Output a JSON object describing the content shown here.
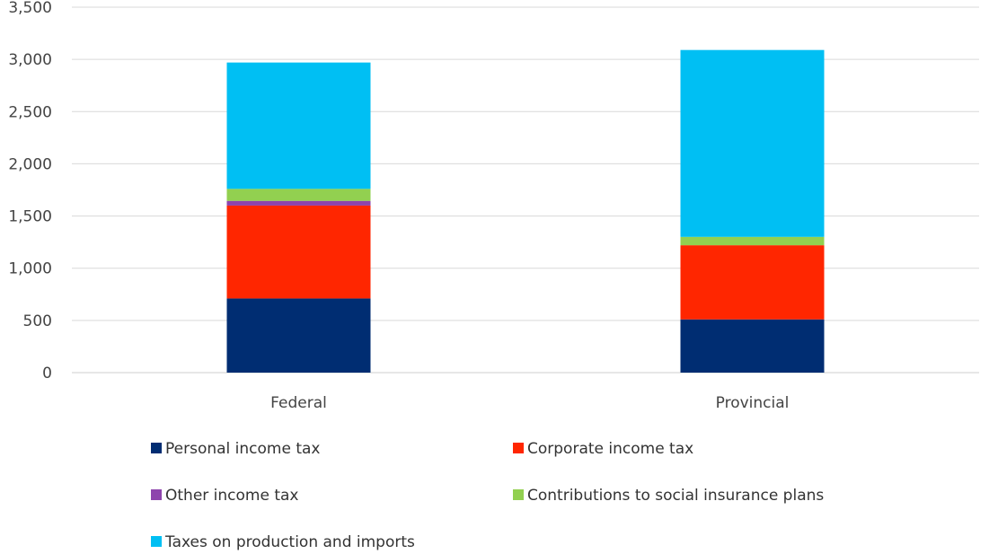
{
  "chart_data": {
    "type": "bar",
    "stacked": true,
    "categories": [
      "Federal",
      "Provincial"
    ],
    "series": [
      {
        "name": "Personal income tax",
        "color": "#002d72",
        "values": [
          710,
          510
        ]
      },
      {
        "name": "Corporate income tax",
        "color": "#ff2600",
        "values": [
          890,
          710
        ]
      },
      {
        "name": "Other income tax",
        "color": "#8e44ad",
        "values": [
          45,
          0
        ]
      },
      {
        "name": "Contributions to social insurance plans",
        "color": "#92d050",
        "values": [
          115,
          80
        ]
      },
      {
        "name": "Taxes on production and imports",
        "color": "#00bff3",
        "values": [
          1210,
          1790
        ]
      }
    ],
    "yticks": [
      "0",
      "500",
      "1,000",
      "1,500",
      "2,000",
      "2,500",
      "3,000",
      "3,500"
    ],
    "ylim": [
      0,
      3500
    ],
    "grid": true,
    "legend_position": "bottom",
    "title": "",
    "xlabel": "",
    "ylabel": ""
  }
}
